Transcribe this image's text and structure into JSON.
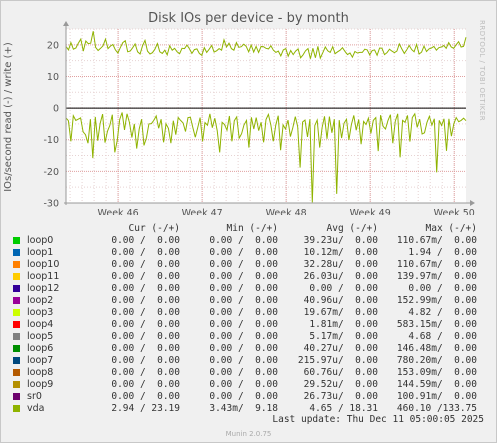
{
  "title": "Disk IOs per device - by month",
  "watermark": "RRDTOOL / TOBI OETIKER",
  "footer": "Munin 2.0.75",
  "last_update": "Last update: Thu Dec 11 05:00:05 2025",
  "legend_headers": {
    "cur": "Cur (-/+)",
    "min": "Min (-/+)",
    "avg": "Avg (-/+)",
    "max": "Max (-/+)"
  },
  "legend": [
    {
      "name": "loop0",
      "color": "#00cc00",
      "cur": "0.00 /  0.00",
      "min": "0.00 /  0.00",
      "avg": "39.23u/  0.00",
      "max": "110.67m/  0.00"
    },
    {
      "name": "loop1",
      "color": "#0066b3",
      "cur": "0.00 /  0.00",
      "min": "0.00 /  0.00",
      "avg": "10.12m/  0.00",
      "max": "1.94 /  0.00"
    },
    {
      "name": "loop10",
      "color": "#ff8000",
      "cur": "0.00 /  0.00",
      "min": "0.00 /  0.00",
      "avg": "32.28u/  0.00",
      "max": "110.67m/  0.00"
    },
    {
      "name": "loop11",
      "color": "#ffcc00",
      "cur": "0.00 /  0.00",
      "min": "0.00 /  0.00",
      "avg": "26.03u/  0.00",
      "max": "139.97m/  0.00"
    },
    {
      "name": "loop12",
      "color": "#330099",
      "cur": "0.00 /  0.00",
      "min": "0.00 /  0.00",
      "avg": "0.00 /  0.00",
      "max": "0.00 /  0.00"
    },
    {
      "name": "loop2",
      "color": "#990099",
      "cur": "0.00 /  0.00",
      "min": "0.00 /  0.00",
      "avg": "40.96u/  0.00",
      "max": "152.99m/  0.00"
    },
    {
      "name": "loop3",
      "color": "#ccff00",
      "cur": "0.00 /  0.00",
      "min": "0.00 /  0.00",
      "avg": "19.67m/  0.00",
      "max": "4.82 /  0.00"
    },
    {
      "name": "loop4",
      "color": "#ff0000",
      "cur": "0.00 /  0.00",
      "min": "0.00 /  0.00",
      "avg": "1.81m/  0.00",
      "max": "583.15m/  0.00"
    },
    {
      "name": "loop5",
      "color": "#808080",
      "cur": "0.00 /  0.00",
      "min": "0.00 /  0.00",
      "avg": "5.17m/  0.00",
      "max": "4.68 /  0.00"
    },
    {
      "name": "loop6",
      "color": "#008f00",
      "cur": "0.00 /  0.00",
      "min": "0.00 /  0.00",
      "avg": "40.27u/  0.00",
      "max": "146.48m/  0.00"
    },
    {
      "name": "loop7",
      "color": "#00487d",
      "cur": "0.00 /  0.00",
      "min": "0.00 /  0.00",
      "avg": "215.97u/  0.00",
      "max": "780.20m/  0.00"
    },
    {
      "name": "loop8",
      "color": "#b35a00",
      "cur": "0.00 /  0.00",
      "min": "0.00 /  0.00",
      "avg": "60.76u/  0.00",
      "max": "153.09m/  0.00"
    },
    {
      "name": "loop9",
      "color": "#b38f00",
      "cur": "0.00 /  0.00",
      "min": "0.00 /  0.00",
      "avg": "29.52u/  0.00",
      "max": "144.59m/  0.00"
    },
    {
      "name": "sr0",
      "color": "#6b006b",
      "cur": "0.00 /  0.00",
      "min": "0.00 /  0.00",
      "avg": "26.73u/  0.00",
      "max": "100.91m/  0.00"
    },
    {
      "name": "vda",
      "color": "#8fb300",
      "cur": "2.94 / 23.19",
      "min": "3.43m/  9.18",
      "avg": "4.65 / 18.31",
      "max": "460.10 /133.75"
    }
  ],
  "chart_data": {
    "type": "line",
    "title": "Disk IOs per device - by month",
    "ylabel": "IOs/second read (-) / write (+)",
    "ylim": [
      -30,
      25
    ],
    "yticks": [
      -30,
      -20,
      -10,
      0,
      10,
      20
    ],
    "xlim": [
      45.38,
      50.14
    ],
    "xtick_labels": [
      {
        "label": "Week 46",
        "x": 46
      },
      {
        "label": "Week 47",
        "x": 47
      },
      {
        "label": "Week 48",
        "x": 48
      },
      {
        "label": "Week 49",
        "x": 49
      },
      {
        "label": "Week 50",
        "x": 50
      }
    ],
    "grid": true,
    "series": [
      {
        "name": "vda",
        "color": "#8fb300",
        "x_start": 45.38,
        "x_end": 50.14,
        "write": [
          19.5,
          18.4,
          20.7,
          18.6,
          19.0,
          20.5,
          21.8,
          18.0,
          21.2,
          20.4,
          20.5,
          24.3,
          19.2,
          18.2,
          18.9,
          19.7,
          21.8,
          18.8,
          19.6,
          20.1,
          18.4,
          17.4,
          19.1,
          20.7,
          21.3,
          17.8,
          18.0,
          19.1,
          20.3,
          17.8,
          17.1,
          19.7,
          21.4,
          18.0,
          17.1,
          17.5,
          18.6,
          20.4,
          17.8,
          17.3,
          18.3,
          16.8,
          19.7,
          18.3,
          18.9,
          17.8,
          17.2,
          18.9,
          18.8,
          19.9,
          18.7,
          17.3,
          18.5,
          18.7,
          17.3,
          16.7,
          19.1,
          17.6,
          18.6,
          19.8,
          17.7,
          18.1,
          18.8,
          18.3,
          21.6,
          19.3,
          20.5,
          18.8,
          18.3,
          20.7,
          19.2,
          19.4,
          20.2,
          19.5,
          17.8,
          19.9,
          17.7,
          19.5,
          17.6,
          19.5,
          19.4,
          18.9,
          18.7,
          19.7,
          18.3,
          17.6,
          18.0,
          16.5,
          18.4,
          18.8,
          16.4,
          18.2,
          16.9,
          18.0,
          18.7,
          15.9,
          16.8,
          18.1,
          18.8,
          15.6,
          18.9,
          15.9,
          19.5,
          15.8,
          17.5,
          19.3,
          18.1,
          17.6,
          19.4,
          17.2,
          17.8,
          18.3,
          19.1,
          17.9,
          16.9,
          17.4,
          16.1,
          17.9,
          17.4,
          17.6,
          17.6,
          18.6,
          18.4,
          16.8,
          18.2,
          18.4,
          16.7,
          19.0,
          18.9,
          16.9,
          17.5,
          18.6,
          18.0,
          17.5,
          18.0,
          20.3,
          18.7,
          17.3,
          18.4,
          19.8,
          18.5,
          17.8,
          20.1,
          17.1,
          17.7,
          19.6,
          17.9,
          18.7,
          19.0,
          19.5,
          18.3,
          19.1,
          19.3,
          19.8,
          18.9,
          20.7,
          19.3,
          18.9,
          20.0,
          21.0,
          19.3,
          19.5,
          22.4
        ],
        "read": [
          -3.1,
          -4.0,
          -10.5,
          -2.4,
          -3.9,
          -3.5,
          -3.1,
          -7.5,
          -8.4,
          -11.1,
          -3.5,
          -15.8,
          -2.8,
          -10.3,
          -4.9,
          -1.9,
          -10.9,
          -7.3,
          -5.4,
          -2.1,
          -14.0,
          -10.3,
          -3.6,
          -1.4,
          -6.9,
          -1.8,
          -4.5,
          -9.3,
          -5.0,
          -12.8,
          -6.6,
          -3.5,
          -11.8,
          -9.3,
          -5.0,
          -4.9,
          -3.9,
          -2.5,
          -6.4,
          -3.5,
          -10.8,
          -5.0,
          -6.4,
          -11.1,
          -4.0,
          -8.4,
          -3.0,
          -3.9,
          -4.7,
          -7.4,
          -3.0,
          -2.9,
          -6.1,
          -9.2,
          -6.2,
          -3.0,
          -10.5,
          -4.6,
          -5.4,
          -1.8,
          -6.2,
          -3.2,
          -7.1,
          -14.0,
          -4.5,
          -5.2,
          -7.0,
          -2.5,
          -10.5,
          -4.0,
          -2.8,
          -9.5,
          -8.1,
          -5.3,
          -3.9,
          -12.5,
          -2.9,
          -6.6,
          -3.0,
          -7.1,
          -4.5,
          -10.8,
          -3.6,
          -2.0,
          -5.4,
          -10.5,
          -5.3,
          -2.4,
          -13.3,
          -5.3,
          -6.6,
          -3.8,
          -9.0,
          -6.2,
          -2.7,
          -5.9,
          -18.8,
          -4.4,
          -3.8,
          -9.1,
          -3.5,
          -29.8,
          -5.5,
          -3.8,
          -12.5,
          -6.2,
          -2.6,
          -9.7,
          -2.7,
          -7.8,
          -3.5,
          -27.1,
          -3.8,
          -9.5,
          -4.8,
          -3.5,
          -10.1,
          -5.2,
          -2.3,
          -7.0,
          -3.6,
          -11.4,
          -4.2,
          -5.2,
          -3.2,
          -8.0,
          -3.9,
          -3.0,
          -13.6,
          -2.2,
          -5.8,
          -6.6,
          -3.9,
          -2.1,
          -11.1,
          -4.1,
          -1.8,
          -15.6,
          -3.9,
          -4.5,
          -2.3,
          -10.6,
          -3.0,
          -1.8,
          -6.1,
          -3.5,
          -8.2,
          -7.8,
          -4.5,
          -2.6,
          -5.4,
          -3.4,
          -20.3,
          -3.9,
          -5.5,
          -3.4,
          -13.5,
          -3.4,
          -8.9,
          -5.0,
          -3.0,
          -4.3,
          -3.9,
          -3.2,
          -4.0
        ]
      }
    ]
  }
}
